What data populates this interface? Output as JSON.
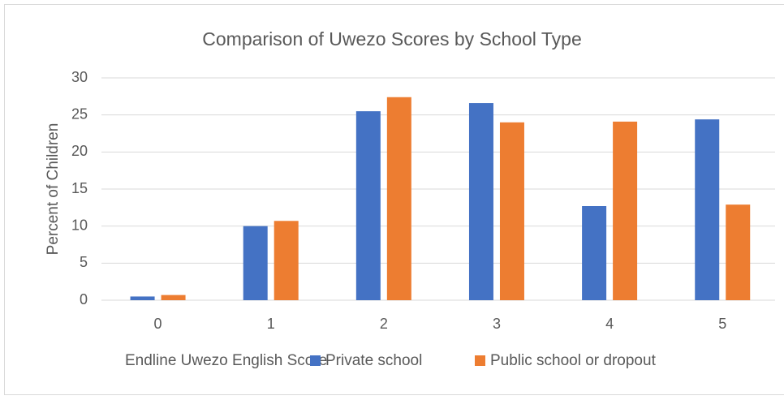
{
  "chart_data": {
    "type": "bar",
    "title": "Comparison of Uwezo Scores by School Type",
    "x_label": "Endline Uwezo English Score",
    "y_label": "Percent of Children",
    "categories": [
      "0",
      "1",
      "2",
      "3",
      "4",
      "5"
    ],
    "series": [
      {
        "name": "Private school",
        "color": "#4472c4",
        "values": [
          0.5,
          10,
          25.5,
          26.6,
          12.7,
          24.4
        ]
      },
      {
        "name": "Public school or dropout",
        "color": "#ed7d31",
        "values": [
          0.7,
          10.7,
          27.4,
          24,
          24.1,
          12.9
        ]
      }
    ],
    "ylim": [
      0,
      30
    ],
    "yticks": [
      0,
      5,
      10,
      15,
      20,
      25,
      30
    ],
    "grid": true,
    "legend": "bottom"
  }
}
